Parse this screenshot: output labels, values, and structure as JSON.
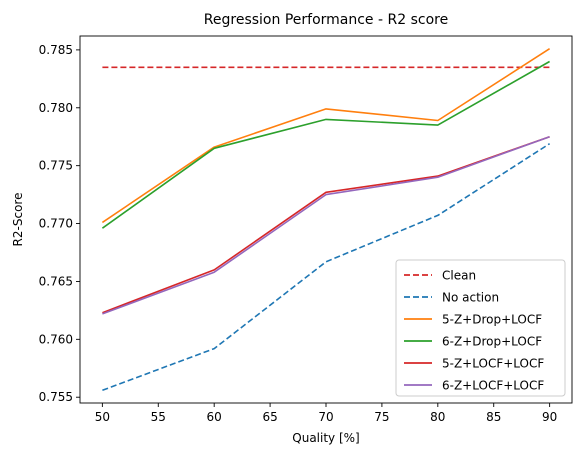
{
  "chart_data": {
    "type": "line",
    "title": "Regression Performance - R2 score",
    "xlabel": "Quality [%]",
    "ylabel": "R2-Score",
    "xlim": [
      48,
      92
    ],
    "ylim": [
      0.7545,
      0.7862
    ],
    "xticks": [
      50,
      55,
      60,
      65,
      70,
      75,
      80,
      85,
      90
    ],
    "xtick_labels": [
      "50",
      "55",
      "60",
      "65",
      "70",
      "75",
      "80",
      "85",
      "90"
    ],
    "yticks": [
      0.755,
      0.76,
      0.765,
      0.77,
      0.775,
      0.78,
      0.785
    ],
    "ytick_labels": [
      "0.755",
      "0.760",
      "0.765",
      "0.770",
      "0.775",
      "0.780",
      "0.785"
    ],
    "grid": false,
    "legend_position": "lower-right",
    "x": [
      50,
      60,
      70,
      80,
      90
    ],
    "series": [
      {
        "name": "Clean",
        "color": "#d62728",
        "dash": "dashed",
        "values": [
          0.7835,
          0.7835,
          0.7835,
          0.7835,
          0.7835
        ]
      },
      {
        "name": "No action",
        "color": "#1f77b4",
        "dash": "dashed",
        "values": [
          0.7556,
          0.7592,
          0.7667,
          0.7707,
          0.7769
        ]
      },
      {
        "name": "5-Z+Drop+LOCF",
        "color": "#ff7f0e",
        "dash": "solid",
        "values": [
          0.7701,
          0.7766,
          0.7799,
          0.7789,
          0.7851
        ]
      },
      {
        "name": "6-Z+Drop+LOCF",
        "color": "#2ca02c",
        "dash": "solid",
        "values": [
          0.7696,
          0.7765,
          0.779,
          0.7785,
          0.784
        ]
      },
      {
        "name": "5-Z+LOCF+LOCF",
        "color": "#d62728",
        "dash": "solid",
        "values": [
          0.7623,
          0.766,
          0.7727,
          0.7741,
          0.7775
        ]
      },
      {
        "name": "6-Z+LOCF+LOCF",
        "color": "#9467bd",
        "dash": "solid",
        "values": [
          0.7622,
          0.7658,
          0.7725,
          0.774,
          0.7775
        ]
      }
    ]
  }
}
